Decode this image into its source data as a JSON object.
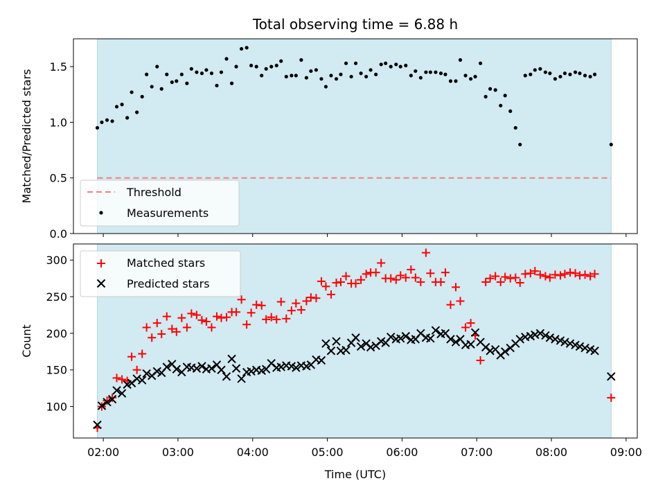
{
  "figure": {
    "title": "Total observing time = 6.88 h",
    "xlabel": "Time (UTC)",
    "x_tick_labels": [
      "02:00",
      "03:00",
      "04:00",
      "05:00",
      "06:00",
      "07:00",
      "08:00",
      "09:00"
    ]
  },
  "colors": {
    "span": "#add8e6",
    "threshold": "#f08080",
    "measurement": "#000000",
    "matched": "#ff0000",
    "predicted": "#000000"
  },
  "chart_data": [
    {
      "type": "scatter",
      "title": "Total observing time = 6.88 h",
      "xlabel": "",
      "ylabel": "Matched/Predicted stars",
      "x_unit": "UTC time (hours)",
      "xlim": [
        1.6,
        9.15
      ],
      "ylim": [
        0,
        1.75
      ],
      "y_ticks": [
        0.0,
        0.5,
        1.0,
        1.5
      ],
      "y_tick_labels": [
        "0.0",
        "0.5",
        "1.0",
        "1.5"
      ],
      "shaded_span": [
        1.92,
        8.8
      ],
      "legend": {
        "placement": "lower-left",
        "entries": [
          "Threshold",
          "Measurements"
        ]
      },
      "threshold": {
        "name": "Threshold",
        "value": 0.5,
        "x_range": [
          1.92,
          8.8
        ],
        "style": "dashed"
      },
      "series": [
        {
          "name": "Measurements",
          "marker": "dot",
          "x": [
            1.92,
            1.98,
            2.05,
            2.12,
            2.18,
            2.25,
            2.32,
            2.38,
            2.45,
            2.52,
            2.58,
            2.65,
            2.72,
            2.78,
            2.85,
            2.92,
            2.98,
            3.05,
            3.12,
            3.18,
            3.25,
            3.32,
            3.38,
            3.45,
            3.52,
            3.58,
            3.65,
            3.72,
            3.78,
            3.85,
            3.92,
            3.98,
            4.05,
            4.12,
            4.18,
            4.25,
            4.32,
            4.38,
            4.45,
            4.52,
            4.58,
            4.65,
            4.72,
            4.78,
            4.85,
            4.92,
            4.98,
            5.05,
            5.12,
            5.18,
            5.25,
            5.32,
            5.38,
            5.45,
            5.52,
            5.58,
            5.65,
            5.72,
            5.78,
            5.85,
            5.92,
            5.98,
            6.05,
            6.12,
            6.18,
            6.25,
            6.32,
            6.38,
            6.45,
            6.52,
            6.58,
            6.65,
            6.72,
            6.78,
            6.85,
            6.92,
            6.98,
            7.05,
            7.12,
            7.18,
            7.25,
            7.32,
            7.38,
            7.45,
            7.52,
            7.58,
            7.65,
            7.72,
            7.78,
            7.85,
            7.92,
            7.98,
            8.05,
            8.12,
            8.18,
            8.25,
            8.32,
            8.38,
            8.45,
            8.52,
            8.58,
            8.8
          ],
          "y": [
            0.95,
            1.0,
            1.02,
            1.01,
            1.14,
            1.16,
            1.04,
            1.27,
            1.09,
            1.23,
            1.43,
            1.32,
            1.5,
            1.3,
            1.43,
            1.36,
            1.37,
            1.43,
            1.35,
            1.48,
            1.45,
            1.44,
            1.47,
            1.44,
            1.33,
            1.45,
            1.57,
            1.35,
            1.5,
            1.66,
            1.67,
            1.51,
            1.5,
            1.42,
            1.48,
            1.5,
            1.51,
            1.55,
            1.41,
            1.42,
            1.42,
            1.56,
            1.4,
            1.46,
            1.47,
            1.39,
            1.32,
            1.42,
            1.39,
            1.43,
            1.53,
            1.41,
            1.53,
            1.44,
            1.41,
            1.47,
            1.43,
            1.52,
            1.53,
            1.5,
            1.52,
            1.5,
            1.51,
            1.42,
            1.46,
            1.4,
            1.45,
            1.45,
            1.45,
            1.44,
            1.43,
            1.37,
            1.37,
            1.56,
            1.42,
            1.39,
            1.41,
            1.53,
            1.23,
            1.3,
            1.29,
            1.15,
            1.24,
            1.1,
            0.95,
            0.8,
            1.42,
            1.43,
            1.47,
            1.48,
            1.45,
            1.44,
            1.39,
            1.41,
            1.44,
            1.43,
            1.45,
            1.44,
            1.42,
            1.41,
            1.43,
            0.8
          ]
        }
      ]
    },
    {
      "type": "scatter",
      "xlabel": "Time (UTC)",
      "ylabel": "Count",
      "x_unit": "UTC time (hours)",
      "xlim": [
        1.6,
        9.15
      ],
      "ylim": [
        57,
        322
      ],
      "y_ticks": [
        100,
        150,
        200,
        250,
        300
      ],
      "y_tick_labels": [
        "100",
        "150",
        "200",
        "250",
        "300"
      ],
      "x_ticks": [
        2,
        3,
        4,
        5,
        6,
        7,
        8,
        9
      ],
      "x_tick_labels": [
        "02:00",
        "03:00",
        "04:00",
        "05:00",
        "06:00",
        "07:00",
        "08:00",
        "09:00"
      ],
      "shaded_span": [
        1.92,
        8.8
      ],
      "legend": {
        "placement": "top-left",
        "entries": [
          "Matched stars",
          "Predicted stars"
        ]
      },
      "series": [
        {
          "name": "Matched stars",
          "marker": "plus",
          "x": [
            1.92,
            1.98,
            2.05,
            2.12,
            2.18,
            2.25,
            2.32,
            2.38,
            2.45,
            2.52,
            2.58,
            2.65,
            2.72,
            2.78,
            2.85,
            2.92,
            2.98,
            3.05,
            3.12,
            3.18,
            3.25,
            3.32,
            3.38,
            3.45,
            3.52,
            3.58,
            3.65,
            3.72,
            3.78,
            3.85,
            3.92,
            3.98,
            4.05,
            4.12,
            4.18,
            4.25,
            4.32,
            4.38,
            4.45,
            4.52,
            4.58,
            4.65,
            4.72,
            4.78,
            4.85,
            4.92,
            4.98,
            5.05,
            5.12,
            5.18,
            5.25,
            5.32,
            5.38,
            5.45,
            5.52,
            5.58,
            5.65,
            5.72,
            5.78,
            5.85,
            5.92,
            5.98,
            6.05,
            6.12,
            6.18,
            6.25,
            6.32,
            6.38,
            6.45,
            6.52,
            6.58,
            6.65,
            6.72,
            6.78,
            6.85,
            6.92,
            6.98,
            7.05,
            7.12,
            7.18,
            7.25,
            7.32,
            7.38,
            7.45,
            7.52,
            7.58,
            7.65,
            7.72,
            7.78,
            7.85,
            7.92,
            7.98,
            8.05,
            8.12,
            8.18,
            8.25,
            8.32,
            8.38,
            8.45,
            8.52,
            8.58,
            8.8
          ],
          "y": [
            71,
            100,
            108,
            112,
            139,
            137,
            135,
            168,
            150,
            172,
            208,
            194,
            214,
            199,
            223,
            206,
            202,
            221,
            208,
            227,
            225,
            218,
            216,
            208,
            223,
            221,
            222,
            229,
            229,
            246,
            212,
            228,
            239,
            238,
            219,
            222,
            219,
            243,
            220,
            231,
            241,
            232,
            244,
            249,
            248,
            271,
            264,
            253,
            269,
            270,
            278,
            268,
            268,
            273,
            281,
            283,
            283,
            296,
            275,
            275,
            273,
            279,
            276,
            287,
            276,
            270,
            310,
            282,
            270,
            270,
            283,
            239,
            263,
            244,
            208,
            214,
            197,
            163,
            270,
            275,
            278,
            270,
            277,
            275,
            276,
            269,
            281,
            282,
            285,
            280,
            278,
            276,
            280,
            279,
            281,
            283,
            282,
            279,
            280,
            278,
            281,
            112
          ]
        },
        {
          "name": "Predicted stars",
          "marker": "x",
          "x": [
            1.92,
            1.98,
            2.05,
            2.12,
            2.18,
            2.25,
            2.32,
            2.38,
            2.45,
            2.52,
            2.58,
            2.65,
            2.72,
            2.78,
            2.85,
            2.92,
            2.98,
            3.05,
            3.12,
            3.18,
            3.25,
            3.32,
            3.38,
            3.45,
            3.52,
            3.58,
            3.65,
            3.72,
            3.78,
            3.85,
            3.92,
            3.98,
            4.05,
            4.12,
            4.18,
            4.25,
            4.32,
            4.38,
            4.45,
            4.52,
            4.58,
            4.65,
            4.72,
            4.78,
            4.85,
            4.92,
            4.98,
            5.05,
            5.12,
            5.18,
            5.25,
            5.32,
            5.38,
            5.45,
            5.52,
            5.58,
            5.65,
            5.72,
            5.78,
            5.85,
            5.92,
            5.98,
            6.05,
            6.12,
            6.18,
            6.25,
            6.32,
            6.38,
            6.45,
            6.52,
            6.58,
            6.65,
            6.72,
            6.78,
            6.85,
            6.92,
            6.98,
            7.05,
            7.12,
            7.18,
            7.25,
            7.32,
            7.38,
            7.45,
            7.52,
            7.58,
            7.65,
            7.72,
            7.78,
            7.85,
            7.92,
            7.98,
            8.05,
            8.12,
            8.18,
            8.25,
            8.32,
            8.38,
            8.45,
            8.52,
            8.58,
            8.8
          ],
          "y": [
            75,
            101,
            106,
            110,
            122,
            118,
            130,
            132,
            138,
            136,
            145,
            142,
            148,
            146,
            154,
            158,
            151,
            147,
            154,
            153,
            152,
            155,
            151,
            152,
            157,
            150,
            141,
            165,
            152,
            138,
            147,
            148,
            150,
            149,
            151,
            159,
            153,
            154,
            156,
            155,
            153,
            156,
            155,
            157,
            164,
            163,
            186,
            176,
            189,
            176,
            177,
            187,
            194,
            182,
            186,
            181,
            183,
            189,
            187,
            195,
            192,
            193,
            196,
            191,
            192,
            200,
            194,
            193,
            204,
            199,
            200,
            192,
            188,
            192,
            184,
            185,
            201,
            188,
            181,
            176,
            178,
            170,
            175,
            180,
            186,
            192,
            195,
            196,
            198,
            200,
            197,
            194,
            192,
            190,
            188,
            186,
            184,
            182,
            180,
            178,
            176,
            141
          ]
        }
      ]
    }
  ]
}
